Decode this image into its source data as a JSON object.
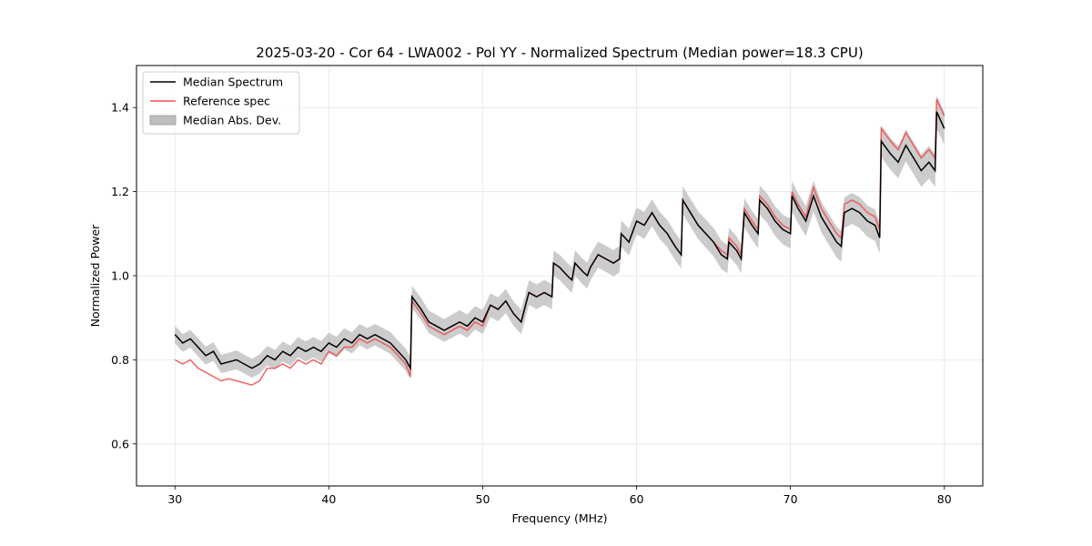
{
  "chart_data": {
    "type": "line",
    "title": "2025-03-20 - Cor 64 - LWA002 - Pol YY - Normalized Spectrum (Median power=18.3 CPU)",
    "xlabel": "Frequency (MHz)",
    "ylabel": "Normalized Power",
    "xlim": [
      27.5,
      82.5
    ],
    "ylim": [
      0.5,
      1.5
    ],
    "xticks": [
      30,
      40,
      50,
      60,
      70,
      80
    ],
    "xtick_labels": [
      "30",
      "40",
      "50",
      "60",
      "70",
      "80"
    ],
    "yticks": [
      0.6,
      0.8,
      1.0,
      1.2,
      1.4
    ],
    "ytick_labels": [
      "0.6",
      "0.8",
      "1.0",
      "1.2",
      "1.4"
    ],
    "grid": true,
    "legend_position": "top-left",
    "legend": [
      {
        "label": "Median Spectrum",
        "kind": "line",
        "color": "#000000"
      },
      {
        "label": "Reference spec",
        "kind": "line",
        "color": "#f05050"
      },
      {
        "label": "Median Abs. Dev.",
        "kind": "band",
        "color": "#bfbfbf"
      }
    ],
    "series": [
      {
        "name": "Median Spectrum",
        "color": "#000000",
        "x": [
          30.0,
          30.5,
          31.0,
          31.5,
          32.0,
          32.5,
          33.0,
          33.5,
          34.0,
          34.5,
          35.0,
          35.5,
          36.0,
          36.5,
          37.0,
          37.5,
          38.0,
          38.5,
          39.0,
          39.5,
          40.0,
          40.5,
          41.0,
          41.5,
          42.0,
          42.5,
          43.0,
          43.5,
          44.0,
          44.5,
          45.0,
          45.3,
          45.4,
          46.0,
          46.5,
          47.0,
          47.5,
          48.0,
          48.5,
          49.0,
          49.5,
          50.0,
          50.5,
          51.0,
          51.5,
          52.0,
          52.5,
          53.0,
          53.5,
          54.0,
          54.5,
          54.6,
          55.0,
          55.5,
          55.8,
          56.0,
          56.5,
          56.8,
          57.0,
          57.5,
          58.0,
          58.5,
          58.9,
          59.0,
          59.5,
          60.0,
          60.5,
          61.0,
          61.5,
          62.0,
          62.5,
          62.9,
          63.0,
          63.5,
          64.0,
          64.5,
          65.0,
          65.5,
          65.9,
          66.0,
          66.5,
          66.8,
          67.0,
          67.5,
          67.9,
          68.0,
          68.5,
          69.0,
          69.5,
          70.0,
          70.1,
          70.5,
          71.0,
          71.5,
          72.0,
          72.5,
          73.0,
          73.3,
          73.5,
          74.0,
          74.5,
          75.0,
          75.5,
          75.8,
          75.9,
          76.5,
          77.0,
          77.5,
          78.0,
          78.5,
          79.0,
          79.4,
          79.5,
          80.0
        ],
        "y": [
          0.86,
          0.84,
          0.85,
          0.83,
          0.81,
          0.82,
          0.79,
          0.795,
          0.8,
          0.79,
          0.78,
          0.79,
          0.81,
          0.8,
          0.82,
          0.81,
          0.83,
          0.82,
          0.83,
          0.82,
          0.84,
          0.83,
          0.85,
          0.84,
          0.86,
          0.85,
          0.86,
          0.85,
          0.84,
          0.82,
          0.8,
          0.78,
          0.95,
          0.92,
          0.89,
          0.88,
          0.87,
          0.88,
          0.89,
          0.88,
          0.9,
          0.89,
          0.93,
          0.92,
          0.94,
          0.91,
          0.89,
          0.96,
          0.95,
          0.96,
          0.95,
          1.03,
          1.02,
          1.0,
          0.99,
          1.03,
          1.01,
          1.0,
          1.02,
          1.05,
          1.04,
          1.03,
          1.04,
          1.1,
          1.08,
          1.13,
          1.12,
          1.15,
          1.12,
          1.1,
          1.07,
          1.05,
          1.18,
          1.15,
          1.12,
          1.1,
          1.08,
          1.05,
          1.04,
          1.08,
          1.06,
          1.04,
          1.15,
          1.12,
          1.1,
          1.18,
          1.16,
          1.13,
          1.11,
          1.1,
          1.19,
          1.16,
          1.13,
          1.19,
          1.14,
          1.11,
          1.08,
          1.07,
          1.15,
          1.16,
          1.15,
          1.13,
          1.12,
          1.09,
          1.32,
          1.29,
          1.27,
          1.31,
          1.28,
          1.25,
          1.27,
          1.25,
          1.39,
          1.35
        ]
      },
      {
        "name": "Reference spec",
        "color": "#f05050",
        "x": [
          30.0,
          30.5,
          31.0,
          31.5,
          32.0,
          32.5,
          33.0,
          33.5,
          34.0,
          34.5,
          35.0,
          35.5,
          36.0,
          36.5,
          37.0,
          37.5,
          38.0,
          38.5,
          39.0,
          39.5,
          40.0,
          40.5,
          41.0,
          41.5,
          42.0,
          42.5,
          43.0,
          43.5,
          44.0,
          44.5,
          45.0,
          45.3,
          45.4,
          46.0,
          46.5,
          47.0,
          47.5,
          48.0,
          48.5,
          49.0,
          49.5,
          50.0,
          50.5,
          51.0,
          51.5,
          52.0,
          52.5,
          53.0,
          53.5,
          54.0,
          54.5,
          54.6,
          55.0,
          55.5,
          55.8,
          56.0,
          56.5,
          56.8,
          57.0,
          57.5,
          58.0,
          58.5,
          58.9,
          59.0,
          59.5,
          60.0,
          60.5,
          61.0,
          61.5,
          62.0,
          62.5,
          62.9,
          63.0,
          63.5,
          64.0,
          64.5,
          65.0,
          65.5,
          65.9,
          66.0,
          66.5,
          66.8,
          67.0,
          67.5,
          67.9,
          68.0,
          68.5,
          69.0,
          69.5,
          70.0,
          70.1,
          70.5,
          71.0,
          71.5,
          72.0,
          72.5,
          73.0,
          73.3,
          73.5,
          74.0,
          74.5,
          75.0,
          75.5,
          75.8,
          75.9,
          76.5,
          77.0,
          77.5,
          78.0,
          78.5,
          79.0,
          79.4,
          79.5,
          80.0
        ],
        "y": [
          0.8,
          0.79,
          0.8,
          0.78,
          0.77,
          0.76,
          0.75,
          0.755,
          0.75,
          0.745,
          0.74,
          0.75,
          0.78,
          0.78,
          0.79,
          0.78,
          0.8,
          0.79,
          0.8,
          0.79,
          0.82,
          0.81,
          0.83,
          0.83,
          0.85,
          0.84,
          0.85,
          0.84,
          0.83,
          0.81,
          0.79,
          0.76,
          0.94,
          0.91,
          0.88,
          0.87,
          0.86,
          0.87,
          0.88,
          0.87,
          0.89,
          0.88,
          0.93,
          0.92,
          0.94,
          0.91,
          0.89,
          0.96,
          0.95,
          0.96,
          0.95,
          1.03,
          1.02,
          1.0,
          0.99,
          1.03,
          1.01,
          1.0,
          1.02,
          1.05,
          1.04,
          1.03,
          1.04,
          1.1,
          1.08,
          1.13,
          1.12,
          1.15,
          1.12,
          1.1,
          1.07,
          1.05,
          1.18,
          1.15,
          1.12,
          1.1,
          1.08,
          1.06,
          1.05,
          1.09,
          1.07,
          1.05,
          1.16,
          1.13,
          1.11,
          1.19,
          1.17,
          1.14,
          1.12,
          1.11,
          1.2,
          1.17,
          1.14,
          1.21,
          1.16,
          1.13,
          1.1,
          1.09,
          1.17,
          1.18,
          1.17,
          1.15,
          1.14,
          1.11,
          1.35,
          1.32,
          1.3,
          1.34,
          1.31,
          1.28,
          1.3,
          1.28,
          1.42,
          1.38
        ]
      }
    ],
    "band": {
      "name": "Median Abs. Dev.",
      "color": "#bfbfbf",
      "base_series": "Median Spectrum",
      "half_width_low_freq": 0.02,
      "half_width_high_freq": 0.04
    }
  }
}
